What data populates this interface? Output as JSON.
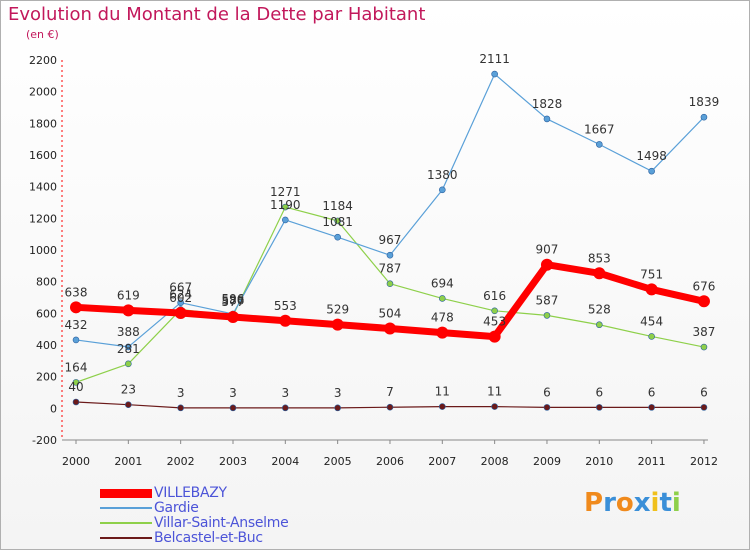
{
  "chart_data": {
    "type": "line",
    "title": "Evolution du Montant de la Dette par Habitant",
    "subtitle": "(en €)",
    "x": [
      "2000",
      "2001",
      "2002",
      "2003",
      "2004",
      "2005",
      "2006",
      "2007",
      "2008",
      "2009",
      "2010",
      "2011",
      "2012"
    ],
    "ylim": [
      -200,
      2200
    ],
    "yticks": [
      -200,
      0,
      200,
      400,
      600,
      800,
      1000,
      1200,
      1400,
      1600,
      1800,
      2000,
      2200
    ],
    "grid": false,
    "legend_position": "bottom-left",
    "series": [
      {
        "name": "VILLEBAZY",
        "color": "#ff0000",
        "values": [
          638,
          619,
          602,
          577,
          553,
          529,
          504,
          478,
          453,
          907,
          853,
          751,
          676
        ]
      },
      {
        "name": "Gardie",
        "color": "#5aa0d8",
        "values": [
          432,
          388,
          667,
          596,
          1190,
          1081,
          967,
          1380,
          2111,
          1828,
          1667,
          1498,
          1839
        ]
      },
      {
        "name": "Villar-Saint-Anselme",
        "color": "#8ed04a",
        "values": [
          164,
          281,
          624,
          586,
          1271,
          1184,
          787,
          694,
          616,
          587,
          528,
          454,
          387
        ]
      },
      {
        "name": "Belcastel-et-Buc",
        "color": "#6b1a1a",
        "values": [
          40,
          23,
          3,
          3,
          3,
          3,
          7,
          11,
          11,
          6,
          6,
          6,
          6
        ]
      }
    ],
    "value_labels": [
      [
        "638",
        "619",
        "602",
        "577",
        "553",
        "529",
        "504",
        "478",
        "453",
        "907",
        "853",
        "751",
        "676"
      ],
      [
        "432",
        "388",
        "667",
        "596",
        "1190",
        "1081",
        "967",
        "1380",
        "2111",
        "1828",
        "1667",
        "1498",
        "1839"
      ],
      [
        "164",
        "281",
        "624",
        "586",
        "1271",
        "1184",
        "787",
        "694",
        "616",
        "587",
        "528",
        "454",
        "387"
      ],
      [
        "40",
        "23",
        "3",
        "3",
        "3",
        "3",
        "7",
        "11",
        "11",
        "6",
        "6",
        "6",
        "6"
      ]
    ]
  },
  "logo": {
    "letters": [
      "P",
      "r",
      "o",
      "x",
      "i",
      "t",
      "i"
    ],
    "colors": [
      "#f08a1c",
      "#3a8fd8",
      "#f08a1c",
      "#3a8fd8",
      "#f0c01c",
      "#3a8fd8",
      "#8ed04a"
    ]
  }
}
